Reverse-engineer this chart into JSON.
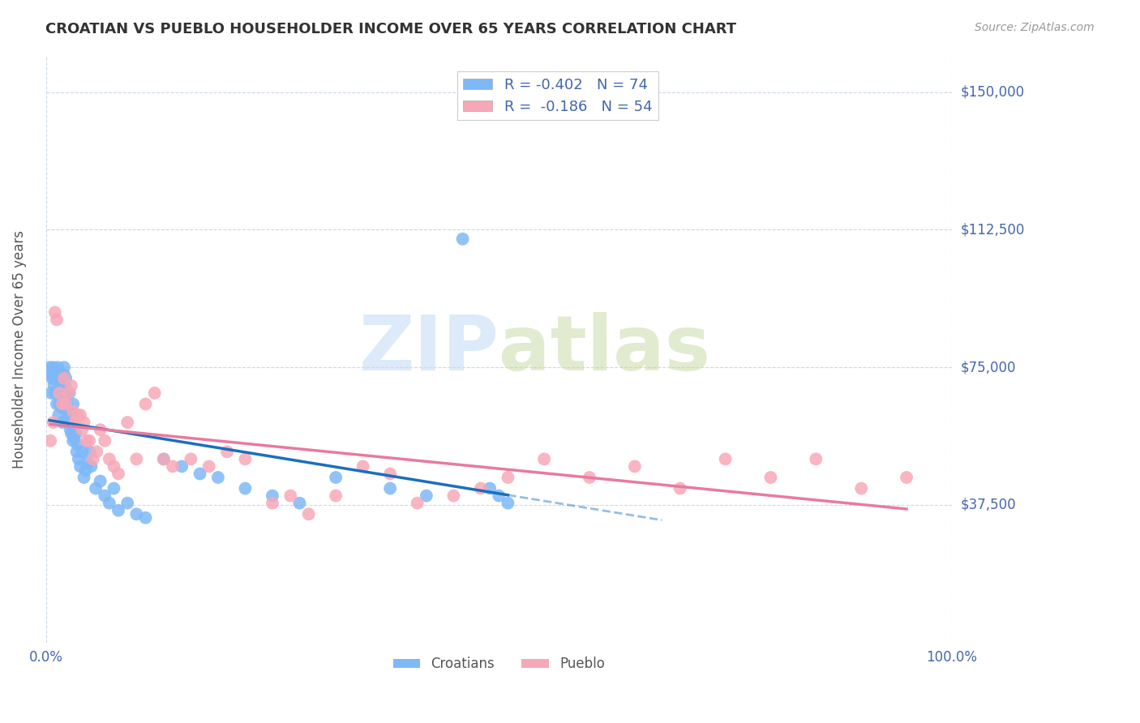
{
  "title": "CROATIAN VS PUEBLO HOUSEHOLDER INCOME OVER 65 YEARS CORRELATION CHART",
  "source": "Source: ZipAtlas.com",
  "ylabel": "Householder Income Over 65 years",
  "x_tick_labels": [
    "0.0%",
    "100.0%"
  ],
  "y_tick_labels": [
    "$37,500",
    "$75,000",
    "$112,500",
    "$150,000"
  ],
  "y_tick_values": [
    37500,
    75000,
    112500,
    150000
  ],
  "y_min": 0,
  "y_max": 160000,
  "x_min": 0.0,
  "x_max": 1.0,
  "croatian_R": -0.402,
  "croatian_N": 74,
  "pueblo_R": -0.186,
  "pueblo_N": 54,
  "croatian_color": "#7eb8f7",
  "pueblo_color": "#f7a8b8",
  "croatian_line_color": "#1a6fbd",
  "pueblo_line_color": "#e87a9f",
  "background_color": "#ffffff",
  "grid_color": "#c8d4e8",
  "title_color": "#333333",
  "axis_label_color": "#4466aa",
  "source_color": "#999999",
  "croatian_x": [
    0.004,
    0.005,
    0.006,
    0.007,
    0.008,
    0.009,
    0.01,
    0.01,
    0.011,
    0.012,
    0.012,
    0.013,
    0.014,
    0.015,
    0.015,
    0.016,
    0.016,
    0.017,
    0.018,
    0.018,
    0.019,
    0.02,
    0.02,
    0.021,
    0.022,
    0.022,
    0.023,
    0.024,
    0.025,
    0.025,
    0.026,
    0.026,
    0.027,
    0.028,
    0.028,
    0.029,
    0.03,
    0.03,
    0.031,
    0.032,
    0.033,
    0.034,
    0.035,
    0.036,
    0.038,
    0.04,
    0.042,
    0.044,
    0.046,
    0.048,
    0.05,
    0.055,
    0.06,
    0.065,
    0.07,
    0.075,
    0.08,
    0.09,
    0.1,
    0.11,
    0.13,
    0.15,
    0.17,
    0.19,
    0.22,
    0.25,
    0.28,
    0.32,
    0.38,
    0.42,
    0.46,
    0.49,
    0.5,
    0.51
  ],
  "croatian_y": [
    75000,
    73000,
    68000,
    72000,
    75000,
    70000,
    68000,
    72000,
    74000,
    65000,
    72000,
    75000,
    62000,
    65000,
    72000,
    73000,
    70000,
    68000,
    60000,
    64000,
    68000,
    75000,
    73000,
    70000,
    68000,
    72000,
    65000,
    63000,
    60000,
    62000,
    68000,
    60000,
    58000,
    60000,
    57000,
    62000,
    65000,
    55000,
    56000,
    58000,
    57000,
    52000,
    54000,
    50000,
    48000,
    52000,
    45000,
    47000,
    49000,
    52000,
    48000,
    42000,
    44000,
    40000,
    38000,
    42000,
    36000,
    38000,
    35000,
    34000,
    50000,
    48000,
    46000,
    45000,
    42000,
    40000,
    38000,
    45000,
    42000,
    40000,
    110000,
    42000,
    40000,
    38000
  ],
  "pueblo_x": [
    0.005,
    0.008,
    0.01,
    0.012,
    0.015,
    0.018,
    0.02,
    0.022,
    0.025,
    0.028,
    0.03,
    0.032,
    0.035,
    0.038,
    0.04,
    0.042,
    0.045,
    0.048,
    0.052,
    0.056,
    0.06,
    0.065,
    0.07,
    0.075,
    0.08,
    0.09,
    0.1,
    0.11,
    0.12,
    0.13,
    0.14,
    0.16,
    0.18,
    0.2,
    0.22,
    0.25,
    0.27,
    0.29,
    0.32,
    0.35,
    0.38,
    0.41,
    0.45,
    0.48,
    0.51,
    0.55,
    0.6,
    0.65,
    0.7,
    0.75,
    0.8,
    0.85,
    0.9,
    0.95
  ],
  "pueblo_y": [
    55000,
    60000,
    90000,
    88000,
    68000,
    65000,
    72000,
    65000,
    68000,
    70000,
    63000,
    60000,
    62000,
    62000,
    58000,
    60000,
    55000,
    55000,
    50000,
    52000,
    58000,
    55000,
    50000,
    48000,
    46000,
    60000,
    50000,
    65000,
    68000,
    50000,
    48000,
    50000,
    48000,
    52000,
    50000,
    38000,
    40000,
    35000,
    40000,
    48000,
    46000,
    38000,
    40000,
    42000,
    45000,
    50000,
    45000,
    48000,
    42000,
    50000,
    45000,
    50000,
    42000,
    45000
  ]
}
